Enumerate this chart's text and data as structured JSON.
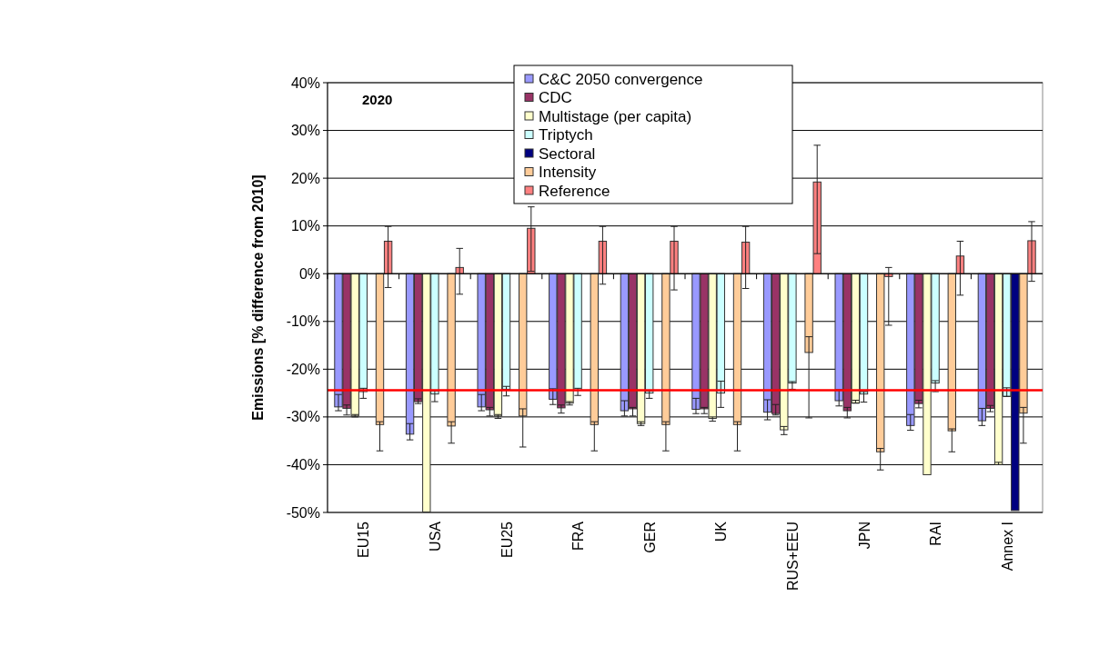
{
  "chart_data": {
    "type": "bar",
    "title": "2020",
    "ylabel": "Emissions [% difference from 2010]",
    "categories": [
      "EU15",
      "USA",
      "EU25",
      "FRA",
      "GER",
      "UK",
      "RUS+EEU",
      "JPN",
      "RAI",
      "Annex I"
    ],
    "ylim": [
      -50,
      40
    ],
    "yticks": [
      {
        "value": 40,
        "label": "40%"
      },
      {
        "value": 30,
        "label": "30%"
      },
      {
        "value": 20,
        "label": "20%"
      },
      {
        "value": 10,
        "label": "10%"
      },
      {
        "value": 0,
        "label": "0%"
      },
      {
        "value": -10,
        "label": "-10%"
      },
      {
        "value": -20,
        "label": "-20%"
      },
      {
        "value": -30,
        "label": "-30%"
      },
      {
        "value": -40,
        "label": "-40%"
      },
      {
        "value": -50,
        "label": "-50%"
      }
    ],
    "grid": "y",
    "legend": "top",
    "ref_lines": [
      {
        "axis": "y",
        "value": -24.4,
        "label": null,
        "color": "#ff0000"
      }
    ],
    "series": [
      {
        "name": "C&C 2050 convergence",
        "color": "#9999ff",
        "values": [
          -27.9,
          -33.6,
          -27.9,
          -26.3,
          -28.7,
          -28.4,
          -29.0,
          -26.6,
          -31.8,
          -30.8
        ],
        "errors": [
          [
            -28.7,
            -25.3
          ],
          [
            -34.8,
            -31.4
          ],
          [
            -28.7,
            -25.3
          ],
          [
            -27.4,
            -24.1
          ],
          [
            -29.8,
            -26.6
          ],
          [
            -29.3,
            -26.1
          ],
          [
            -30.6,
            -26.4
          ],
          [
            -27.7,
            -24.3
          ],
          [
            -32.8,
            -29.5
          ],
          [
            -31.8,
            -28.2
          ]
        ]
      },
      {
        "name": "CDC",
        "color": "#993366",
        "values": [
          -28.2,
          -26.8,
          -28.5,
          -28.1,
          -28.3,
          -28.3,
          -29.3,
          -28.7,
          -27.2,
          -28.2
        ],
        "errors": [
          [
            -29.6,
            -27.5
          ],
          [
            -27.2,
            -26.2
          ],
          [
            -29.8,
            -28.0
          ],
          [
            -29.2,
            -27.5
          ],
          [
            -29.8,
            -28.0
          ],
          [
            -29.3,
            -28.0
          ],
          [
            -29.6,
            -27.4
          ],
          [
            -30.2,
            -28.0
          ],
          [
            -28.1,
            -26.5
          ],
          [
            -28.9,
            -27.6
          ]
        ]
      },
      {
        "name": "Multistage (per capita)",
        "color": "#ffffcc",
        "values": [
          -29.8,
          -49.9,
          -29.8,
          -27.1,
          -31.4,
          -30.3,
          -32.7,
          -27.1,
          -42.1,
          -40.0
        ],
        "errors": [
          [
            -30.0,
            -29.5
          ],
          null,
          [
            -30.3,
            -29.5
          ],
          [
            -27.5,
            -26.8
          ],
          [
            -31.8,
            -31.0
          ],
          [
            -30.9,
            -30.0
          ],
          [
            -33.7,
            -32.0
          ],
          [
            -27.1,
            -26.5
          ],
          null,
          [
            -40.0,
            -39.5
          ]
        ]
      },
      {
        "name": "Triptych",
        "color": "#ccffff",
        "values": [
          -24.7,
          -25.2,
          -24.2,
          -24.4,
          -25.0,
          -25.0,
          -22.9,
          -25.2,
          -22.9,
          -25.7
        ],
        "errors": [
          [
            -26.1,
            -24.0
          ],
          [
            -26.8,
            -24.5
          ],
          [
            -25.6,
            -23.6
          ],
          [
            -25.5,
            -24.0
          ],
          [
            -26.1,
            -24.6
          ],
          [
            -28.0,
            -22.5
          ],
          [
            -24.2,
            -22.6
          ],
          [
            -26.9,
            -24.7
          ],
          [
            -24.7,
            -22.4
          ],
          [
            -25.7,
            -23.9
          ]
        ]
      },
      {
        "name": "Sectoral",
        "color": "#000080",
        "values": [
          null,
          null,
          null,
          null,
          null,
          null,
          null,
          null,
          null,
          -49.6
        ]
      },
      {
        "name": "Intensity",
        "color": "#ffcc99",
        "values": [
          -31.6,
          -31.9,
          -29.8,
          -31.6,
          -31.6,
          -31.6,
          -16.5,
          -37.3,
          -32.9,
          -29.2
        ],
        "errors": [
          [
            -37.1,
            -31.0
          ],
          [
            -35.5,
            -31.0
          ],
          [
            -36.3,
            -28.3
          ],
          [
            -37.1,
            -31.0
          ],
          [
            -37.1,
            -31.0
          ],
          [
            -37.1,
            -31.0
          ],
          [
            -30.2,
            -13.2
          ],
          [
            -41.1,
            -36.6
          ],
          [
            -37.3,
            -32.5
          ],
          [
            -35.5,
            -28.0
          ]
        ]
      },
      {
        "name": "Reference",
        "color": "#ff8080",
        "values": [
          6.8,
          1.3,
          9.5,
          6.8,
          6.8,
          6.6,
          19.2,
          -0.6,
          3.7,
          6.9
        ],
        "errors": [
          [
            -2.9,
            9.9
          ],
          [
            -4.3,
            5.3
          ],
          [
            0.5,
            14.0
          ],
          [
            -2.2,
            9.9
          ],
          [
            -3.4,
            9.9
          ],
          [
            -3.1,
            9.9
          ],
          [
            4.2,
            26.9
          ],
          [
            -10.8,
            1.3
          ],
          [
            -4.5,
            6.8
          ],
          [
            -1.6,
            10.9
          ]
        ]
      }
    ]
  }
}
